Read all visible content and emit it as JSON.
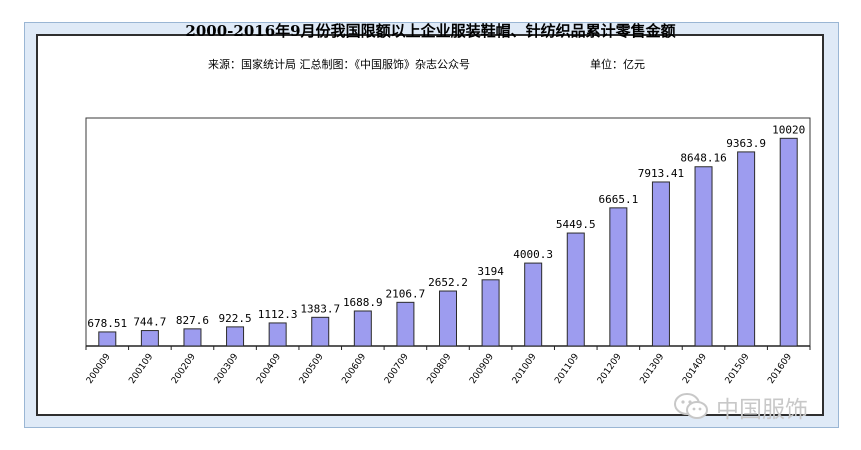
{
  "chart_data": {
    "type": "bar",
    "title": "2000-2016年9月份我国限额以上企业服装鞋帽、针纺织品累计零售金额",
    "subtitle": "来源：国家统计局   汇总制图：《中国服饰》杂志公众号",
    "unit": "单位：亿元",
    "xlabel": "",
    "ylabel": "",
    "ylim": [
      0,
      11000
    ],
    "categories": [
      "200009",
      "200109",
      "200209",
      "200309",
      "200409",
      "200509",
      "200609",
      "200709",
      "200809",
      "200909",
      "201009",
      "201109",
      "201209",
      "201309",
      "201409",
      "201509",
      "201609"
    ],
    "values": [
      678.51,
      744.7,
      827.6,
      922.5,
      1112.3,
      1383.7,
      1688.9,
      2106.7,
      2652.2,
      3194,
      4000.3,
      5449.5,
      6665.1,
      7913.41,
      8648.16,
      9363.9,
      10020
    ],
    "value_labels": [
      "678.51",
      "744.7",
      "827.6",
      "922.5",
      "1112.3",
      "1383.7",
      "1688.9",
      "2106.7",
      "2652.2",
      "3194",
      "4000.3",
      "5449.5",
      "6665.1",
      "7913.41",
      "8648.16",
      "9363.9",
      "10020"
    ],
    "bar_color": "#9d9cef",
    "bar_border_color": "#2b2b2b",
    "grid": false
  },
  "watermark": {
    "text": "中国服饰",
    "icon": "wechat-icon"
  }
}
